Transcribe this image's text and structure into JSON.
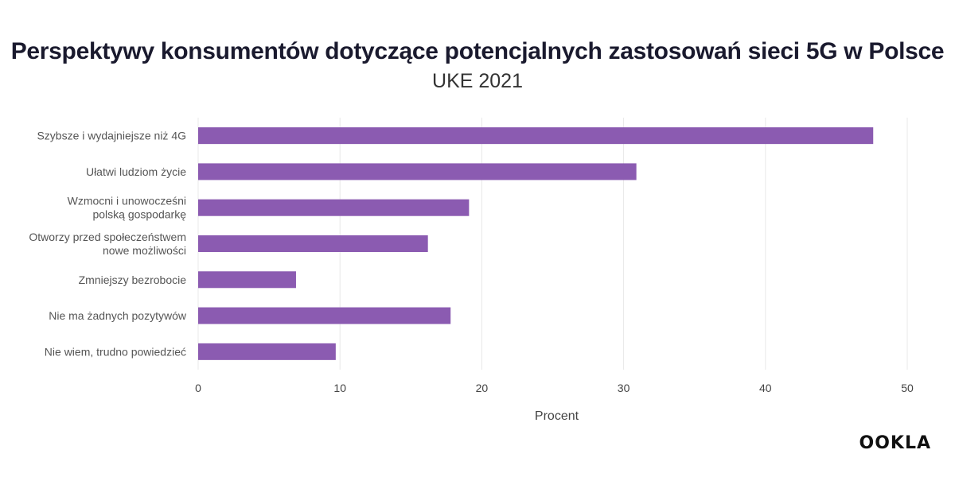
{
  "title": "Perspektywy konsumentów dotyczące potencjalnych zastosowań sieci 5G w Polsce",
  "subtitle": "UKE 2021",
  "logo": "OOKLA",
  "chart_data": {
    "type": "bar",
    "orientation": "horizontal",
    "categories": [
      [
        "Szybsze i wydajniejsze niż 4G"
      ],
      [
        "Ułatwi ludziom życie"
      ],
      [
        "Wzmocni i unowocześni",
        "polską gospodarkę"
      ],
      [
        "Otworzy przed społeczeństwem",
        "nowe możliwości"
      ],
      [
        "Zmniejszy bezrobocie"
      ],
      [
        "Nie ma żadnych pozytywów"
      ],
      [
        "Nie wiem, trudno powiedzieć"
      ]
    ],
    "values": [
      47.6,
      30.9,
      19.1,
      16.2,
      6.9,
      17.8,
      9.7
    ],
    "xlabel": "Procent",
    "ylabel": "",
    "xlim": [
      0,
      50
    ],
    "xticks": [
      0,
      10,
      20,
      30,
      40,
      50
    ],
    "grid": true,
    "bar_color": "#8b5bb1"
  }
}
